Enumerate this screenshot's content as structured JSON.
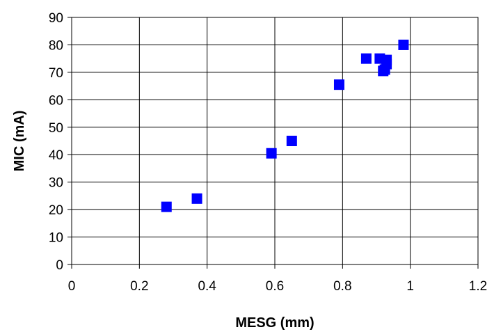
{
  "chart_data": {
    "type": "scatter",
    "title": "",
    "xlabel": "MESG (mm)",
    "ylabel": "MIC (mA)",
    "xlim": [
      0,
      1.2
    ],
    "ylim": [
      0,
      90
    ],
    "x_ticks": [
      "0",
      "0.2",
      "0.4",
      "0.6",
      "0.8",
      "1",
      "1.2"
    ],
    "y_ticks": [
      "0",
      "10",
      "20",
      "30",
      "40",
      "50",
      "60",
      "70",
      "80",
      "90"
    ],
    "grid": true,
    "legend": "none",
    "marker": "square",
    "colors": {
      "marker": "#0000ff",
      "grid": "#000000",
      "axis": "#000000"
    },
    "series": [
      {
        "points": [
          {
            "x": 0.28,
            "y": 21
          },
          {
            "x": 0.37,
            "y": 24
          },
          {
            "x": 0.59,
            "y": 40.5
          },
          {
            "x": 0.65,
            "y": 45
          },
          {
            "x": 0.79,
            "y": 65.5
          },
          {
            "x": 0.87,
            "y": 75
          },
          {
            "x": 0.91,
            "y": 75
          },
          {
            "x": 0.92,
            "y": 70.5
          },
          {
            "x": 0.925,
            "y": 71
          },
          {
            "x": 0.93,
            "y": 74.5
          },
          {
            "x": 0.93,
            "y": 73
          },
          {
            "x": 0.98,
            "y": 80
          }
        ]
      }
    ]
  }
}
